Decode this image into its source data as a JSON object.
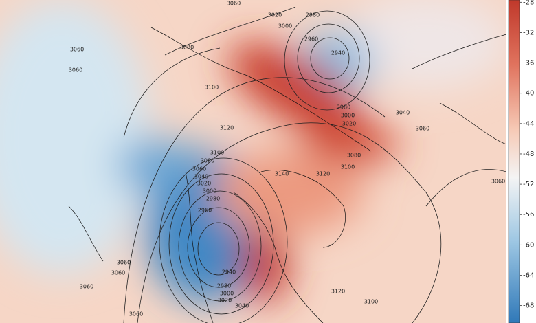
{
  "colorbar": {
    "lim": [
      -27.7,
      -70.3
    ],
    "ticks": [
      -28,
      -32,
      -36,
      -40,
      -44,
      -48,
      -52,
      -56,
      -60,
      -64,
      -68
    ]
  },
  "contour_labels": [
    3060,
    3020,
    2980,
    3000,
    2960,
    2940,
    3080,
    3060,
    3060,
    3100,
    2980,
    3000,
    3020,
    3040,
    3060,
    3120,
    3100,
    3080,
    3060,
    3040,
    3020,
    3000,
    2980,
    2960,
    3140,
    3120,
    3080,
    3100,
    3060,
    2940,
    2980,
    3000,
    3020,
    3040,
    3060,
    3060,
    3060,
    3060,
    3120,
    3100
  ]
}
